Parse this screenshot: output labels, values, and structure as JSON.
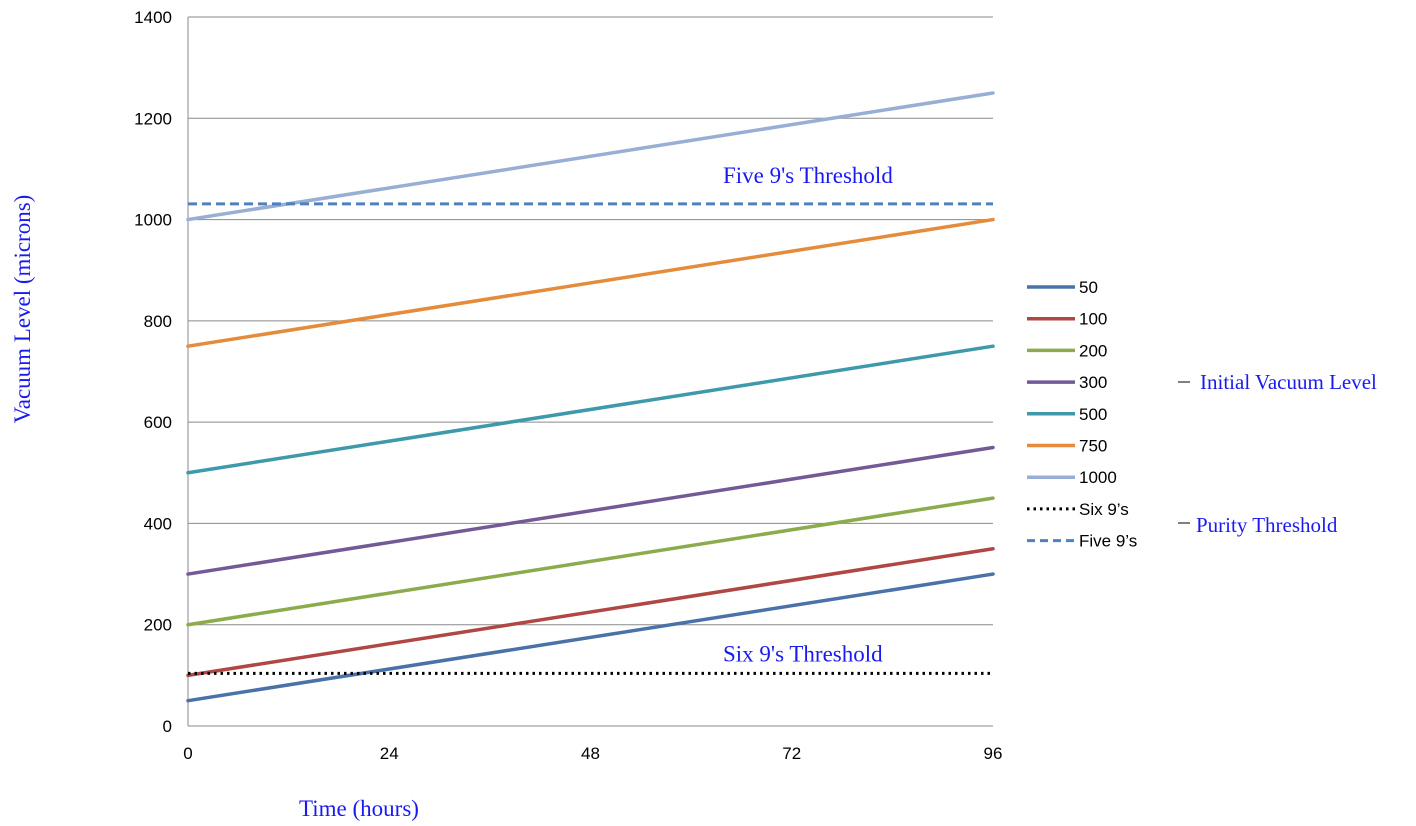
{
  "chart_data": {
    "type": "line",
    "xlabel": "Time (hours)",
    "ylabel": "Vacuum Level (microns)",
    "xlim": [
      0,
      96
    ],
    "ylim": [
      0,
      1400
    ],
    "x_ticks": [
      "0",
      "24",
      "48",
      "72",
      "96"
    ],
    "y_ticks": [
      "0",
      "200",
      "400",
      "600",
      "800",
      "1000",
      "1200",
      "1400"
    ],
    "grid": "horizontal",
    "legend_position": "right",
    "x": [
      0,
      96
    ],
    "series": [
      {
        "name": "50",
        "values": [
          50,
          300
        ],
        "color": "#4a72a9"
      },
      {
        "name": "100",
        "values": [
          100,
          350
        ],
        "color": "#b04744"
      },
      {
        "name": "200",
        "values": [
          200,
          450
        ],
        "color": "#8cab4c"
      },
      {
        "name": "300",
        "values": [
          300,
          550
        ],
        "color": "#735995"
      },
      {
        "name": "500",
        "values": [
          500,
          750
        ],
        "color": "#3e9aaa"
      },
      {
        "name": "750",
        "values": [
          750,
          1000
        ],
        "color": "#e48c3c"
      },
      {
        "name": "1000",
        "values": [
          1000,
          1250
        ],
        "color": "#98aed4"
      }
    ],
    "thresholds": [
      {
        "name": "Six 9’s",
        "value": 104,
        "style": "dotted",
        "color": "#000000",
        "annotation": "Six 9's Threshold"
      },
      {
        "name": "Five 9’s",
        "value": 1031,
        "style": "dashed",
        "color": "#4e81bd",
        "annotation": "Five 9's Threshold"
      }
    ],
    "legend_groups": [
      {
        "label": "Initial Vacuum Level"
      },
      {
        "label": "Purity Threshold"
      }
    ]
  }
}
